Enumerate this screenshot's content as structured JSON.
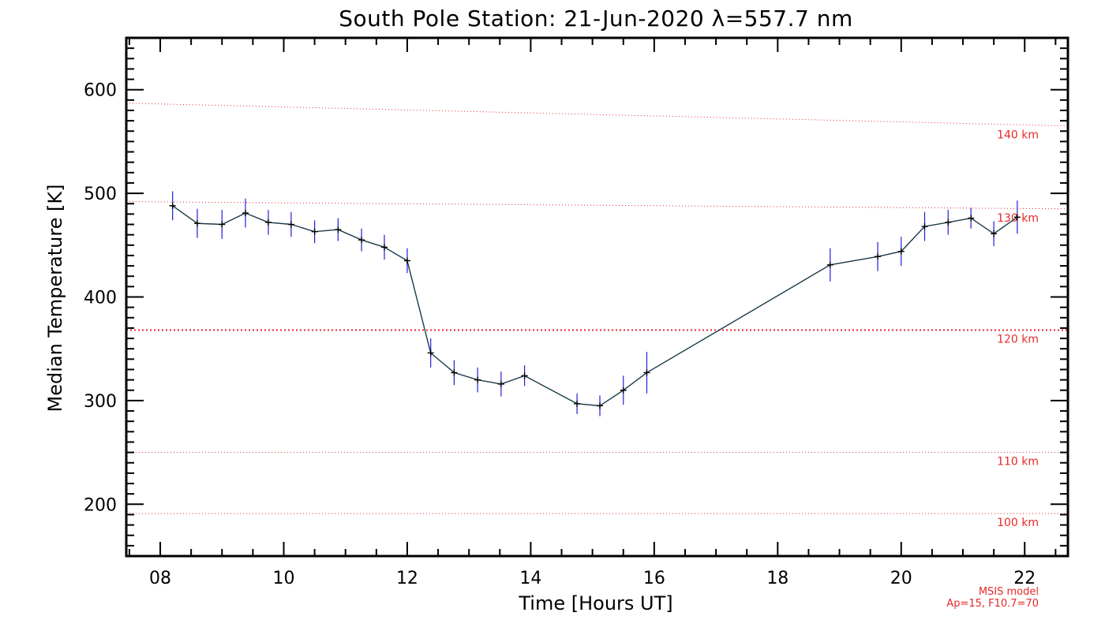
{
  "chart_data": {
    "type": "line",
    "title": "South Pole Station: 21-Jun-2020 λ=557.7 nm",
    "xlabel": "Time [Hours UT]",
    "ylabel": "Median Temperature [K]",
    "xlim": [
      7.45,
      22.7
    ],
    "ylim": [
      150,
      650
    ],
    "x_ticks": [
      8,
      10,
      12,
      14,
      16,
      18,
      20,
      22
    ],
    "x_tick_labels": [
      "08",
      "10",
      "12",
      "14",
      "16",
      "18",
      "20",
      "22"
    ],
    "y_ticks": [
      200,
      300,
      400,
      500,
      600
    ],
    "y_tick_labels": [
      "200",
      "300",
      "400",
      "500",
      "600"
    ],
    "series": [
      {
        "name": "Median Temperature",
        "x": [
          8.2,
          8.6,
          9.0,
          9.38,
          9.75,
          10.12,
          10.5,
          10.88,
          11.26,
          11.63,
          12.0,
          12.38,
          12.76,
          13.14,
          13.52,
          13.9,
          14.75,
          15.12,
          15.5,
          15.88,
          18.85,
          19.62,
          20.0,
          20.38,
          20.76,
          21.13,
          21.5,
          21.88
        ],
        "y": [
          488,
          471,
          470,
          481,
          472,
          470,
          463,
          465,
          455,
          448,
          435,
          346,
          327,
          320,
          316,
          324,
          297,
          295,
          310,
          327,
          431,
          439,
          444,
          468,
          472,
          476,
          461,
          477
        ],
        "errors": [
          14,
          14,
          14,
          14,
          12,
          12,
          11,
          11,
          11,
          12,
          12,
          14,
          12,
          12,
          12,
          10,
          10,
          10,
          14,
          20,
          16,
          14,
          14,
          14,
          12,
          10,
          12,
          16
        ],
        "line_color": "#1a3a4a",
        "error_color": "#1f1fdf",
        "marker": "+"
      }
    ],
    "reference_lines": [
      {
        "label": "100 km",
        "y": [
          191,
          191
        ]
      },
      {
        "label": "110 km",
        "y": [
          250,
          250
        ]
      },
      {
        "label": "120 km",
        "y": [
          368,
          368
        ]
      },
      {
        "label": "130 km",
        "y": [
          492,
          485
        ]
      },
      {
        "label": "140 km",
        "y": [
          587,
          565
        ]
      }
    ],
    "reference_color": "#e8282a",
    "note_lines": [
      "MSIS model",
      "Ap=15, F10.7=70"
    ]
  }
}
